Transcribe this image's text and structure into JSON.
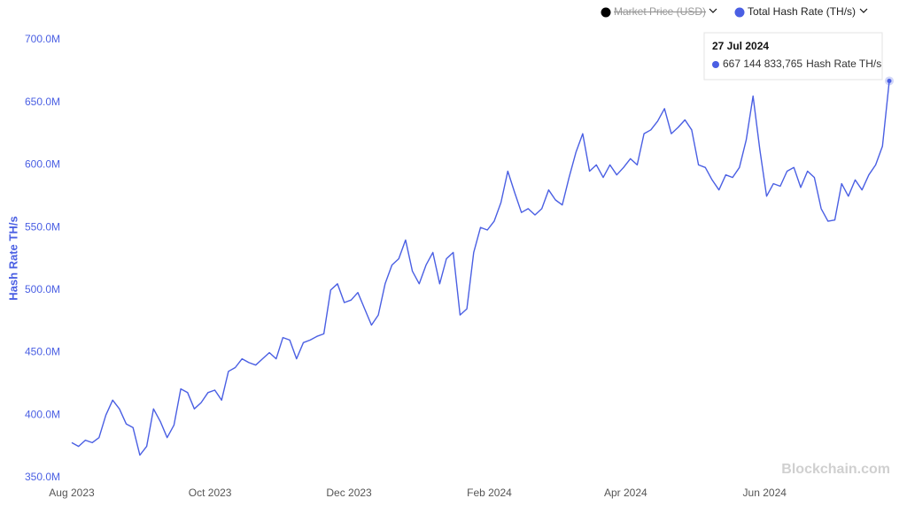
{
  "chart_data": {
    "type": "line",
    "ylabel": "Hash Rate TH/s",
    "watermark": "Blockchain.com",
    "legend_position": "top-right",
    "grid": false,
    "hidden_series": [
      {
        "name": "Market Price (USD)",
        "color": "#000000"
      }
    ],
    "series": [
      {
        "name": "Total Hash Rate (TH/s)",
        "color": "#4a5fe3",
        "values": [
          378000000,
          375000000,
          380000000,
          378000000,
          382000000,
          400000000,
          412000000,
          405000000,
          393000000,
          390000000,
          368000000,
          375000000,
          405000000,
          395000000,
          382000000,
          392000000,
          421000000,
          418000000,
          405000000,
          410000000,
          418000000,
          420000000,
          412000000,
          435000000,
          438000000,
          445000000,
          442000000,
          440000000,
          445000000,
          450000000,
          445000000,
          462000000,
          460000000,
          445000000,
          458000000,
          460000000,
          463000000,
          465000000,
          500000000,
          505000000,
          490000000,
          492000000,
          498000000,
          485000000,
          472000000,
          480000000,
          505000000,
          520000000,
          525000000,
          540000000,
          515000000,
          505000000,
          520000000,
          530000000,
          505000000,
          525000000,
          530000000,
          480000000,
          485000000,
          530000000,
          550000000,
          548000000,
          555000000,
          570000000,
          595000000,
          578000000,
          562000000,
          565000000,
          560000000,
          565000000,
          580000000,
          572000000,
          568000000,
          590000000,
          610000000,
          625000000,
          595000000,
          600000000,
          590000000,
          600000000,
          592000000,
          598000000,
          605000000,
          600000000,
          625000000,
          628000000,
          635000000,
          645000000,
          625000000,
          630000000,
          636000000,
          628000000,
          600000000,
          598000000,
          588000000,
          580000000,
          592000000,
          590000000,
          598000000,
          620000000,
          655000000,
          612000000,
          575000000,
          585000000,
          583000000,
          595000000,
          598000000,
          582000000,
          595000000,
          590000000,
          565000000,
          555000000,
          556000000,
          585000000,
          575000000,
          588000000,
          580000000,
          592000000,
          600000000,
          615000000,
          667144833.765
        ],
        "value_labels": [
          null,
          null,
          null,
          null,
          null,
          null,
          null,
          null,
          null,
          null,
          null,
          null,
          null,
          null,
          null,
          null,
          null,
          null,
          null,
          null,
          null,
          null,
          null,
          null,
          null,
          null,
          null,
          null,
          null,
          null,
          null,
          null,
          null,
          null,
          null,
          null,
          null,
          null,
          null,
          null,
          null,
          null,
          null,
          null,
          null,
          null,
          null,
          null,
          null,
          null,
          null,
          null,
          null,
          null,
          null,
          null,
          null,
          null,
          null,
          null,
          null,
          null,
          null,
          null,
          null,
          null,
          null,
          null,
          null,
          null,
          null,
          null,
          null,
          null,
          null,
          null,
          null,
          null,
          null,
          null,
          null,
          null,
          null,
          null,
          null,
          null,
          null,
          null,
          null,
          null,
          null,
          null,
          null,
          null,
          null,
          null,
          null,
          null,
          null,
          null,
          null,
          null,
          null,
          null,
          null,
          null,
          null,
          null,
          null,
          null,
          null,
          null,
          null,
          null,
          null,
          null,
          null,
          null,
          null,
          null,
          "667 144 833,765"
        ]
      }
    ],
    "tooltip": {
      "title": "27 Jul 2024",
      "suffix": "Hash Rate TH/s"
    },
    "xlim": [
      0,
      120
    ],
    "xticks": [
      {
        "value": 0,
        "label": "Aug 2023"
      },
      {
        "value": 20.3,
        "label": "Oct 2023"
      },
      {
        "value": 40.7,
        "label": "Dec 2023"
      },
      {
        "value": 61.3,
        "label": "Feb 2024"
      },
      {
        "value": 81.3,
        "label": "Apr 2024"
      },
      {
        "value": 101.7,
        "label": "Jun 2024"
      }
    ],
    "ylim": [
      350000000,
      700000000
    ],
    "yticks": [
      {
        "value": 350000000,
        "label": "350.0M"
      },
      {
        "value": 400000000,
        "label": "400.0M"
      },
      {
        "value": 450000000,
        "label": "450.0M"
      },
      {
        "value": 500000000,
        "label": "500.0M"
      },
      {
        "value": 550000000,
        "label": "550.0M"
      },
      {
        "value": 600000000,
        "label": "600.0M"
      },
      {
        "value": 650000000,
        "label": "650.0M"
      },
      {
        "value": 700000000,
        "label": "700.0M"
      }
    ]
  }
}
